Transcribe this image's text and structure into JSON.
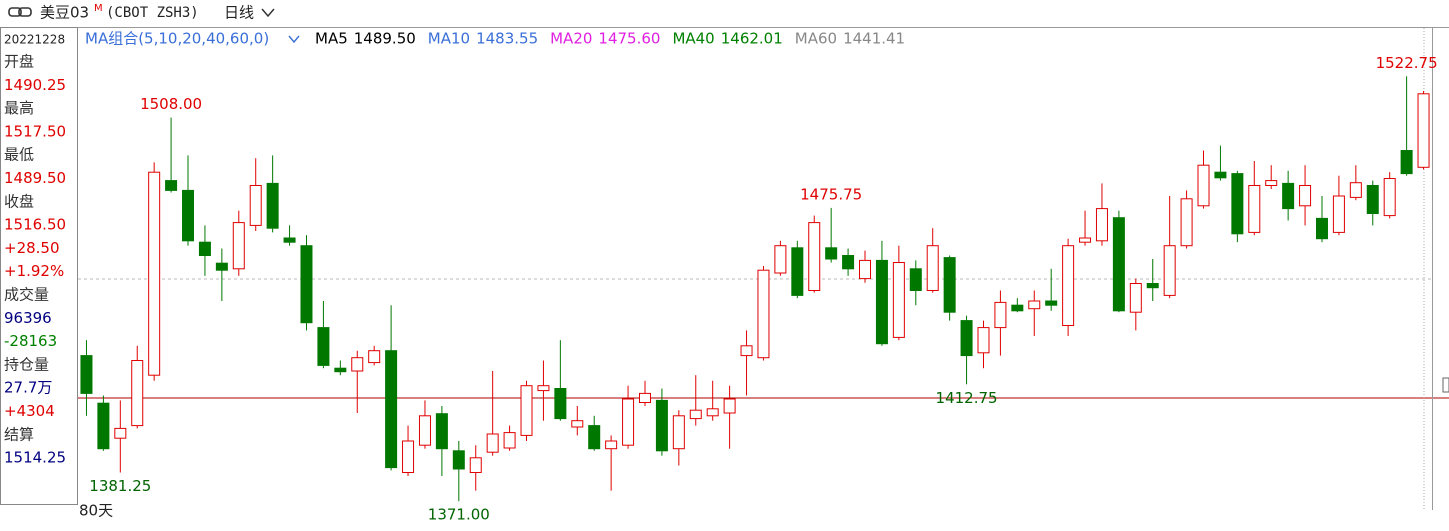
{
  "header": {
    "symbol": "美豆03",
    "superscript": "M",
    "code": "(CBOT ZSH3)",
    "period": "日线"
  },
  "info_panel": {
    "date": "20221228",
    "rows": [
      {
        "text": "开盘",
        "color": "#333333"
      },
      {
        "text": "1490.25",
        "color": "#e00000"
      },
      {
        "text": "最高",
        "color": "#333333"
      },
      {
        "text": "1517.50",
        "color": "#e00000"
      },
      {
        "text": "最低",
        "color": "#333333"
      },
      {
        "text": "1489.50",
        "color": "#e00000"
      },
      {
        "text": "收盘",
        "color": "#333333"
      },
      {
        "text": "1516.50",
        "color": "#e00000"
      },
      {
        "text": "+28.50",
        "color": "#e00000"
      },
      {
        "text": "+1.92%",
        "color": "#e00000"
      },
      {
        "text": "成交量",
        "color": "#333333"
      },
      {
        "text": "96396",
        "color": "#000080"
      },
      {
        "text": "-28163",
        "color": "#008000"
      },
      {
        "text": "持仓量",
        "color": "#333333"
      },
      {
        "text": "27.7万",
        "color": "#000080"
      },
      {
        "text": "+4304",
        "color": "#e00000"
      },
      {
        "text": "结算",
        "color": "#333333"
      },
      {
        "text": "1514.25",
        "color": "#000080"
      }
    ]
  },
  "chart_data": {
    "type": "candlestick",
    "legend_title": "MA组合(5,10,20,40,60,0)",
    "ma": [
      {
        "name": "MA5",
        "value": "1489.50",
        "color": "#000000"
      },
      {
        "name": "MA10",
        "value": "1483.55",
        "color": "#3a6fd8"
      },
      {
        "name": "MA20",
        "value": "1475.60",
        "color": "#e020e0"
      },
      {
        "name": "MA40",
        "value": "1462.01",
        "color": "#008000"
      },
      {
        "name": "MA60",
        "value": "1441.41",
        "color": "#888888"
      }
    ],
    "up_color": "#e00000",
    "down_color": "#007800",
    "ylim": [
      1363,
      1540
    ],
    "ohlc": [
      [
        1423,
        1428.5,
        1401.5,
        1409.5
      ],
      [
        1406,
        1408.75,
        1389,
        1389.75
      ],
      [
        1393.5,
        1407,
        1381.25,
        1397
      ],
      [
        1398,
        1426.5,
        1397,
        1421.25
      ],
      [
        1416,
        1492,
        1414,
        1488.5
      ],
      [
        1485.5,
        1508,
        1481.25,
        1482
      ],
      [
        1482,
        1494.5,
        1462.25,
        1464
      ],
      [
        1463.5,
        1469.5,
        1451.5,
        1458.75
      ],
      [
        1456,
        1461.25,
        1442.5,
        1453.5
      ],
      [
        1454,
        1474.75,
        1451.5,
        1470.5
      ],
      [
        1469.5,
        1493.5,
        1467.5,
        1483.75
      ],
      [
        1484.5,
        1494.5,
        1467,
        1468.5
      ],
      [
        1465,
        1469.5,
        1462.25,
        1463.5
      ],
      [
        1462.25,
        1466,
        1432,
        1434.75
      ],
      [
        1433,
        1442.5,
        1418.5,
        1419.5
      ],
      [
        1418.5,
        1421.25,
        1416,
        1417.25
      ],
      [
        1417.5,
        1424.75,
        1402.5,
        1422.25
      ],
      [
        1420.5,
        1426.5,
        1419.5,
        1424.75
      ],
      [
        1424.75,
        1441,
        1382,
        1383
      ],
      [
        1381.25,
        1398,
        1380,
        1392.5
      ],
      [
        1391,
        1407,
        1389.75,
        1401.5
      ],
      [
        1402.25,
        1405,
        1380,
        1389.75
      ],
      [
        1389,
        1392.5,
        1371,
        1382.5
      ],
      [
        1381.25,
        1391,
        1374.75,
        1386.5
      ],
      [
        1388.5,
        1417.5,
        1387.25,
        1395
      ],
      [
        1390,
        1398,
        1389,
        1395.5
      ],
      [
        1394.5,
        1414,
        1392.5,
        1412.25
      ],
      [
        1410.5,
        1421.25,
        1399.75,
        1412.25
      ],
      [
        1411.25,
        1428.5,
        1399.75,
        1400.5
      ],
      [
        1397.5,
        1405,
        1394.5,
        1399.75
      ],
      [
        1398,
        1401.5,
        1389,
        1389.75
      ],
      [
        1389.75,
        1394.5,
        1374.75,
        1392.5
      ],
      [
        1391,
        1412.25,
        1389.75,
        1407.5
      ],
      [
        1406.25,
        1414,
        1405,
        1409.5
      ],
      [
        1407,
        1411.25,
        1387.25,
        1389
      ],
      [
        1389.75,
        1403.5,
        1383.75,
        1401.5
      ],
      [
        1400.5,
        1416,
        1398,
        1403.5
      ],
      [
        1401.5,
        1414,
        1399.75,
        1404
      ],
      [
        1402.5,
        1412.25,
        1389.75,
        1407.5
      ],
      [
        1423,
        1432,
        1408.75,
        1426.5
      ],
      [
        1422.25,
        1455,
        1421.25,
        1453.5
      ],
      [
        1452.5,
        1464,
        1451.5,
        1462.25
      ],
      [
        1461.5,
        1464,
        1443.5,
        1444.5
      ],
      [
        1446.25,
        1473,
        1445.5,
        1470.5
      ],
      [
        1461.5,
        1475.75,
        1456.25,
        1457.5
      ],
      [
        1458.75,
        1461.25,
        1451.5,
        1454
      ],
      [
        1450.5,
        1460.5,
        1449,
        1457
      ],
      [
        1457,
        1464,
        1426.5,
        1427.25
      ],
      [
        1429.5,
        1462.25,
        1428.5,
        1456.25
      ],
      [
        1454,
        1457,
        1441,
        1446.25
      ],
      [
        1446.25,
        1468.5,
        1445.5,
        1462.25
      ],
      [
        1458,
        1458.75,
        1435.5,
        1438.5
      ],
      [
        1435.5,
        1437.25,
        1412.75,
        1423
      ],
      [
        1424,
        1435.5,
        1418.5,
        1433
      ],
      [
        1433,
        1446.25,
        1423,
        1442
      ],
      [
        1441,
        1443.5,
        1438.5,
        1439
      ],
      [
        1439.75,
        1446.25,
        1430,
        1442.5
      ],
      [
        1442.5,
        1454,
        1439,
        1441
      ],
      [
        1433.75,
        1464.75,
        1430,
        1462.25
      ],
      [
        1463.5,
        1474.75,
        1462.25,
        1465
      ],
      [
        1464,
        1484.5,
        1462.25,
        1475.5
      ],
      [
        1472.25,
        1474.75,
        1438.5,
        1439
      ],
      [
        1438.5,
        1450.5,
        1432,
        1448.75
      ],
      [
        1448.75,
        1457.5,
        1442.5,
        1447.25
      ],
      [
        1444.5,
        1480,
        1443.5,
        1462.25
      ],
      [
        1462.25,
        1482,
        1461.25,
        1479
      ],
      [
        1476.5,
        1496.25,
        1475.5,
        1491
      ],
      [
        1488.5,
        1498,
        1485.5,
        1486.5
      ],
      [
        1488,
        1489,
        1463.5,
        1466.5
      ],
      [
        1467,
        1492.5,
        1466,
        1483.75
      ],
      [
        1483.75,
        1491,
        1482.5,
        1485.5
      ],
      [
        1484.5,
        1489,
        1471.25,
        1475.5
      ],
      [
        1476.5,
        1491,
        1469.5,
        1483.75
      ],
      [
        1472,
        1480,
        1463.5,
        1464.75
      ],
      [
        1467,
        1487.25,
        1466,
        1480
      ],
      [
        1479.5,
        1491,
        1478.5,
        1484.75
      ],
      [
        1483.75,
        1485.5,
        1469.5,
        1473.75
      ],
      [
        1473,
        1488.5,
        1472,
        1486.25
      ],
      [
        1496.25,
        1522.75,
        1487.25,
        1488
      ],
      [
        1490.25,
        1517.5,
        1489.5,
        1516.5
      ]
    ],
    "annotations": [
      {
        "text": "1508.00",
        "value": 1508,
        "color": "#e00000"
      },
      {
        "text": "1381.25",
        "value": 1381.25,
        "color": "#006400"
      },
      {
        "text": "1371.00",
        "value": 1371,
        "color": "#006400"
      },
      {
        "text": "1475.75",
        "value": 1475.75,
        "color": "#e00000"
      },
      {
        "text": "1412.75",
        "value": 1412.75,
        "color": "#006400"
      },
      {
        "text": "1522.75",
        "value": 1522.75,
        "color": "#e00000"
      }
    ],
    "footer": "80天"
  }
}
